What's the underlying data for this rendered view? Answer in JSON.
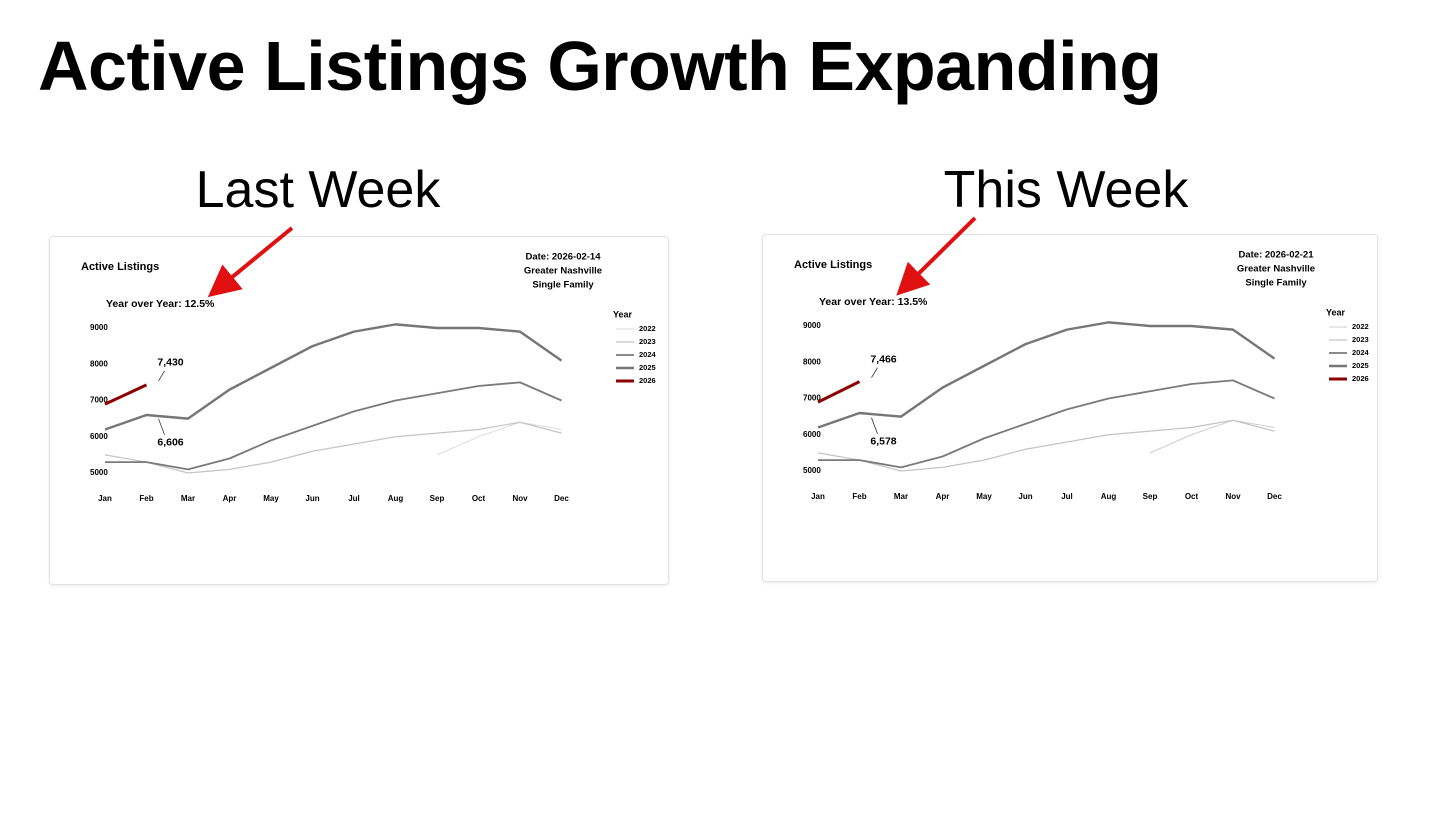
{
  "title": "Active Listings Growth Expanding",
  "chart_data": [
    {
      "type": "line",
      "panel_label": "Last Week",
      "title": "Active Listings",
      "subtitle": "Year over Year: 12.5%",
      "info": [
        "Date: 2026-02-14",
        "Greater Nashville",
        "Single Family"
      ],
      "legend_title": "Year",
      "legend": "right",
      "grid": false,
      "categories": [
        "Jan",
        "Feb",
        "Mar",
        "Apr",
        "May",
        "Jun",
        "Jul",
        "Aug",
        "Sep",
        "Oct",
        "Nov",
        "Dec"
      ],
      "ylim": [
        4700,
        9400
      ],
      "yticks": [
        5000,
        6000,
        7000,
        8000,
        9000
      ],
      "series": [
        {
          "name": "2022",
          "color": "#dddddd",
          "width": 1,
          "values": [
            null,
            null,
            null,
            null,
            null,
            null,
            null,
            null,
            5500,
            6000,
            6400,
            6200
          ]
        },
        {
          "name": "2023",
          "color": "#c4c4c4",
          "width": 1.2,
          "values": [
            5500,
            5300,
            5000,
            5100,
            5300,
            5600,
            5800,
            6000,
            6100,
            6200,
            6400,
            6100
          ]
        },
        {
          "name": "2024",
          "color": "#7a7a7a",
          "width": 1.8,
          "values": [
            5300,
            5300,
            5100,
            5400,
            5900,
            6300,
            6700,
            7000,
            7200,
            7400,
            7500,
            7000
          ]
        },
        {
          "name": "2025",
          "color": "#767676",
          "width": 2.4,
          "values": [
            6200,
            6600,
            6500,
            7300,
            7900,
            8500,
            8900,
            9100,
            9000,
            9000,
            8900,
            8100
          ]
        },
        {
          "name": "2026",
          "color": "#8b0000",
          "width": 3,
          "values": [
            6900,
            7430,
            null,
            null,
            null,
            null,
            null,
            null,
            null,
            null,
            null,
            null
          ]
        }
      ],
      "annotations": [
        {
          "label": "7,430",
          "value": 7430
        },
        {
          "label": "6,606",
          "value": 6606
        }
      ]
    },
    {
      "type": "line",
      "panel_label": "This Week",
      "title": "Active Listings",
      "subtitle": "Year over Year: 13.5%",
      "info": [
        "Date: 2026-02-21",
        "Greater Nashville",
        "Single Family"
      ],
      "legend_title": "Year",
      "legend": "right",
      "grid": false,
      "categories": [
        "Jan",
        "Feb",
        "Mar",
        "Apr",
        "May",
        "Jun",
        "Jul",
        "Aug",
        "Sep",
        "Oct",
        "Nov",
        "Dec"
      ],
      "ylim": [
        4700,
        9400
      ],
      "yticks": [
        5000,
        6000,
        7000,
        8000,
        9000
      ],
      "series": [
        {
          "name": "2022",
          "color": "#cfcfcf",
          "width": 1,
          "values": [
            null,
            null,
            null,
            null,
            null,
            null,
            null,
            null,
            5500,
            6000,
            6400,
            6200
          ]
        },
        {
          "name": "2023",
          "color": "#c4c4c4",
          "width": 1.2,
          "values": [
            5500,
            5300,
            5000,
            5100,
            5300,
            5600,
            5800,
            6000,
            6100,
            6200,
            6400,
            6100
          ]
        },
        {
          "name": "2024",
          "color": "#7a7a7a",
          "width": 1.8,
          "values": [
            5300,
            5300,
            5100,
            5400,
            5900,
            6300,
            6700,
            7000,
            7200,
            7400,
            7500,
            7000
          ]
        },
        {
          "name": "2025",
          "color": "#767676",
          "width": 2.4,
          "values": [
            6200,
            6600,
            6500,
            7300,
            7900,
            8500,
            8900,
            9100,
            9000,
            9000,
            8900,
            8100
          ]
        },
        {
          "name": "2026",
          "color": "#8b0000",
          "width": 3,
          "values": [
            6900,
            7466,
            null,
            null,
            null,
            null,
            null,
            null,
            null,
            null,
            null,
            null
          ]
        }
      ],
      "annotations": [
        {
          "label": "7,466",
          "value": 7466
        },
        {
          "label": "6,578",
          "value": 6578
        }
      ]
    }
  ]
}
